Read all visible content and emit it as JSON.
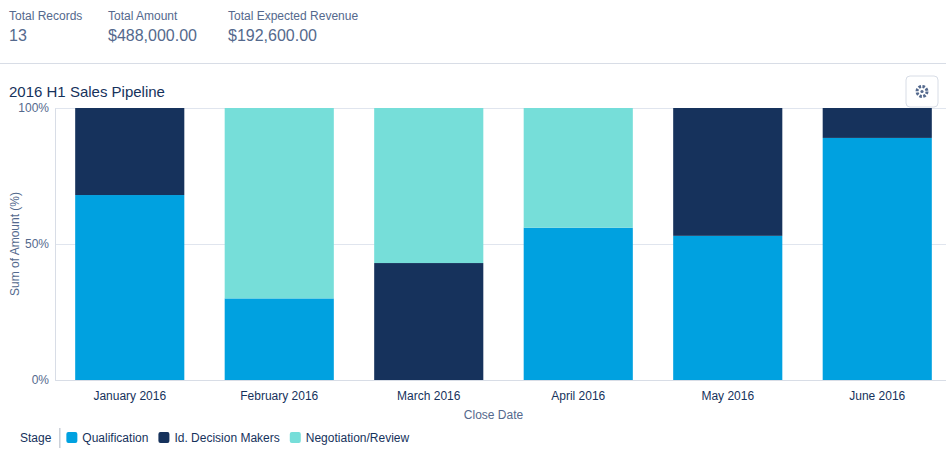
{
  "summary": [
    {
      "label": "Total Records",
      "value": "13"
    },
    {
      "label": "Total Amount",
      "value": "$488,000.00"
    },
    {
      "label": "Total Expected Revenue",
      "value": "$192,600.00"
    }
  ],
  "chart_data": {
    "type": "bar",
    "stacked": true,
    "title": "2016 H1 Sales Pipeline",
    "x_label": "Close Date",
    "y_label": "Sum of Amount (%)",
    "categories": [
      "January 2016",
      "February 2016",
      "March 2016",
      "April 2016",
      "May 2016",
      "June 2016"
    ],
    "series": [
      {
        "name": "Qualification",
        "color": "#00a1e0",
        "values": [
          68,
          30,
          0,
          56,
          53,
          89
        ]
      },
      {
        "name": "Id. Decision Makers",
        "color": "#16325c",
        "values": [
          32,
          0,
          43,
          0,
          47,
          11
        ]
      },
      {
        "name": "Negotiation/Review",
        "color": "#76ded9",
        "values": [
          0,
          70,
          57,
          44,
          0,
          0
        ]
      }
    ],
    "ylim": [
      0,
      100
    ],
    "yticks": [
      {
        "value": 0,
        "label": "0%"
      },
      {
        "value": 50,
        "label": "50%"
      },
      {
        "value": 100,
        "label": "100%"
      }
    ],
    "grid": true,
    "legend": "bottom",
    "legend_title": "Stage"
  }
}
